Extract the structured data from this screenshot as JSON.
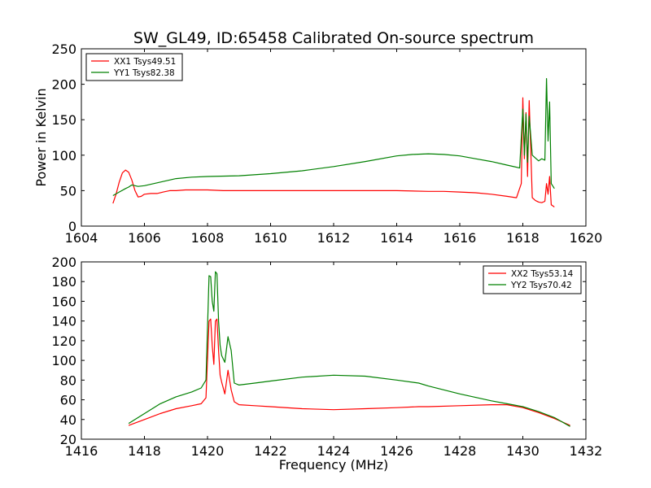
{
  "chart_data": [
    {
      "type": "line",
      "title": "SW_GL49, ID:65458 Calibrated On-source spectrum",
      "xlabel": "",
      "ylabel": "Power in Kelvin",
      "xlim": [
        1604,
        1620
      ],
      "ylim": [
        0,
        250
      ],
      "xticks": [
        "1604",
        "1606",
        "1608",
        "1610",
        "1612",
        "1614",
        "1616",
        "1618",
        "1620"
      ],
      "yticks": [
        "0",
        "50",
        "100",
        "150",
        "200",
        "250"
      ],
      "legend_position": "top-left",
      "grid": false,
      "series": [
        {
          "name": "XX1 Tsys49.51",
          "color": "#ff0000",
          "x": [
            1605.0,
            1605.1,
            1605.2,
            1605.3,
            1605.4,
            1605.5,
            1605.6,
            1605.7,
            1605.8,
            1605.9,
            1606.0,
            1606.2,
            1606.4,
            1606.6,
            1606.8,
            1607.0,
            1607.3,
            1607.6,
            1608.0,
            1608.5,
            1609.0,
            1610.0,
            1611.0,
            1612.0,
            1613.0,
            1614.0,
            1615.0,
            1615.5,
            1616.0,
            1616.5,
            1617.0,
            1617.5,
            1617.8,
            1617.95,
            1618.0,
            1618.05,
            1618.1,
            1618.15,
            1618.2,
            1618.3,
            1618.4,
            1618.5,
            1618.6,
            1618.7,
            1618.75,
            1618.8,
            1618.85,
            1618.9,
            1619.0
          ],
          "y": [
            32,
            45,
            62,
            75,
            79,
            76,
            65,
            50,
            41,
            42,
            45,
            46,
            46,
            48,
            50,
            50,
            51,
            51,
            51,
            50,
            50,
            50,
            50,
            50,
            50,
            50,
            49,
            49,
            48,
            47,
            45,
            42,
            40,
            60,
            181,
            95,
            160,
            70,
            177,
            40,
            36,
            34,
            33,
            35,
            60,
            45,
            70,
            30,
            27
          ]
        },
        {
          "name": "YY1 Tsys82.38",
          "color": "#008000",
          "x": [
            1605.0,
            1605.2,
            1605.4,
            1605.5,
            1605.6,
            1605.8,
            1606.0,
            1606.5,
            1607.0,
            1607.5,
            1608.0,
            1609.0,
            1610.0,
            1611.0,
            1612.0,
            1613.0,
            1614.0,
            1614.5,
            1615.0,
            1615.5,
            1616.0,
            1616.5,
            1617.0,
            1617.5,
            1617.9,
            1618.0,
            1618.05,
            1618.1,
            1618.15,
            1618.2,
            1618.3,
            1618.4,
            1618.5,
            1618.6,
            1618.7,
            1618.75,
            1618.8,
            1618.85,
            1618.9,
            1619.0
          ],
          "y": [
            43,
            48,
            53,
            55,
            58,
            56,
            57,
            62,
            67,
            69,
            70,
            71,
            74,
            78,
            84,
            91,
            99,
            101,
            102,
            101,
            99,
            95,
            91,
            86,
            82,
            165,
            100,
            158,
            90,
            155,
            100,
            96,
            92,
            95,
            93,
            208,
            120,
            175,
            60,
            53
          ]
        }
      ]
    },
    {
      "type": "line",
      "title": "",
      "xlabel": "Frequency (MHz)",
      "ylabel": "",
      "xlim": [
        1416,
        1432
      ],
      "ylim": [
        20,
        200
      ],
      "xticks": [
        "1416",
        "1418",
        "1420",
        "1422",
        "1424",
        "1426",
        "1428",
        "1430",
        "1432"
      ],
      "yticks": [
        "20",
        "40",
        "60",
        "80",
        "100",
        "120",
        "140",
        "160",
        "180",
        "200"
      ],
      "legend_position": "top-right",
      "grid": false,
      "series": [
        {
          "name": "XX2 Tsys53.14",
          "color": "#ff0000",
          "x": [
            1417.5,
            1418.0,
            1418.5,
            1419.0,
            1419.5,
            1419.8,
            1419.95,
            1420.05,
            1420.1,
            1420.15,
            1420.2,
            1420.25,
            1420.3,
            1420.35,
            1420.4,
            1420.45,
            1420.55,
            1420.65,
            1420.75,
            1420.85,
            1421.0,
            1421.5,
            1422.0,
            1423.0,
            1424.0,
            1425.0,
            1426.0,
            1426.7,
            1427.0,
            1428.0,
            1429.0,
            1429.5,
            1430.0,
            1430.5,
            1431.0,
            1431.5
          ],
          "y": [
            34,
            40,
            46,
            51,
            54,
            56,
            62,
            140,
            142,
            115,
            96,
            140,
            142,
            110,
            85,
            78,
            66,
            90,
            70,
            58,
            55,
            54,
            53,
            51,
            50,
            51,
            52,
            53,
            53,
            54,
            55,
            55,
            52,
            47,
            41,
            34
          ]
        },
        {
          "name": "YY2 Tsys70.42",
          "color": "#008000",
          "x": [
            1417.5,
            1418.0,
            1418.5,
            1419.0,
            1419.5,
            1419.8,
            1419.95,
            1420.05,
            1420.1,
            1420.15,
            1420.2,
            1420.25,
            1420.3,
            1420.35,
            1420.4,
            1420.45,
            1420.55,
            1420.65,
            1420.75,
            1420.85,
            1421.0,
            1421.5,
            1422.0,
            1423.0,
            1424.0,
            1425.0,
            1426.0,
            1426.7,
            1427.0,
            1428.0,
            1429.0,
            1429.5,
            1430.0,
            1430.5,
            1431.0,
            1431.5
          ],
          "y": [
            36,
            46,
            56,
            63,
            68,
            72,
            80,
            186,
            185,
            160,
            150,
            190,
            188,
            140,
            115,
            105,
            98,
            124,
            110,
            77,
            75,
            77,
            79,
            83,
            85,
            84,
            80,
            77,
            74,
            66,
            59,
            56,
            53,
            48,
            42,
            33
          ]
        }
      ]
    }
  ]
}
